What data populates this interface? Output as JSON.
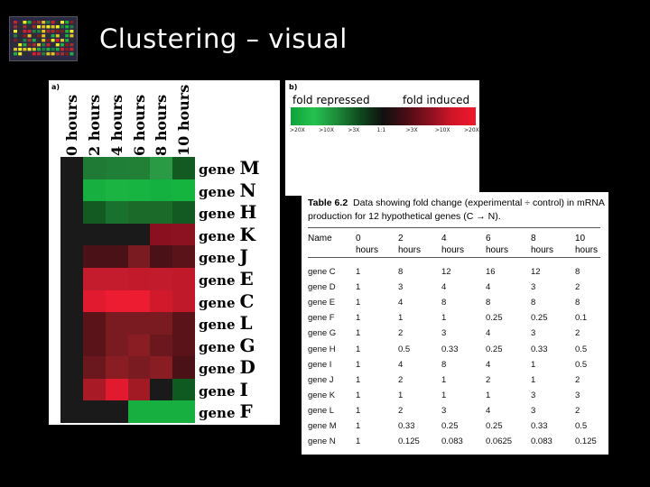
{
  "slide": {
    "title": "Clustering – visual"
  },
  "logo": {
    "icon": "microarray-thumbnail-icon"
  },
  "heatmap": {
    "panel_label": "a)",
    "timepoints": [
      "0 hours",
      "2 hours",
      "4 hours",
      "6 hours",
      "8 hours",
      "10 hours"
    ],
    "gene_word": "gene",
    "genes": [
      "M",
      "N",
      "H",
      "K",
      "J",
      "E",
      "C",
      "L",
      "G",
      "D",
      "I",
      "F"
    ],
    "colors": [
      [
        "#1a1a1a",
        "#1e7a34",
        "#1f7f36",
        "#227f36",
        "#2a9a45",
        "#135a22"
      ],
      [
        "#1a1a1a",
        "#17b040",
        "#1bb443",
        "#18b442",
        "#14b140",
        "#14b43f"
      ],
      [
        "#1a1a1a",
        "#135a22",
        "#18722d",
        "#1c6a2a",
        "#1c6a2a",
        "#135a22"
      ],
      [
        "#1a1a1a",
        "#1a1a1a",
        "#1a1a1a",
        "#1a1a1a",
        "#8a1020",
        "#8c1222"
      ],
      [
        "#1a1a1a",
        "#4a1117",
        "#4a1117",
        "#7a1b22",
        "#4a1117",
        "#5a1419"
      ],
      [
        "#1a1a1a",
        "#c41c2c",
        "#c41c2c",
        "#c21a2a",
        "#c21c2c",
        "#c01a2a"
      ],
      [
        "#1a1a1a",
        "#e11a2f",
        "#ee1c30",
        "#ee1c30",
        "#d01a2c",
        "#c01a2a"
      ],
      [
        "#1a1a1a",
        "#5a1419",
        "#7a1b22",
        "#7a1b22",
        "#7a1b22",
        "#5a1419"
      ],
      [
        "#1a1a1a",
        "#5a1419",
        "#7a1b22",
        "#8a1d24",
        "#6a171d",
        "#5a1419"
      ],
      [
        "#1a1a1a",
        "#6a171d",
        "#8a1d24",
        "#7a1b22",
        "#8a1d24",
        "#4a1117"
      ],
      [
        "#1a1a1a",
        "#a81a26",
        "#e11a2f",
        "#a21a24",
        "#1a1a1a",
        "#0f5a20"
      ],
      [
        "#1a1a1a",
        "#1a1a1a",
        "#1a1a1a",
        "#17b040",
        "#17b040",
        "#17b040"
      ]
    ]
  },
  "legend": {
    "panel_label": "b)",
    "repressed_label": "fold repressed",
    "induced_label": "fold induced",
    "scale_labels": [
      ">20X",
      ">10X",
      ">3X",
      "1:1",
      ">3X",
      ">10X",
      ">20X"
    ],
    "gradient_colors": [
      "#0fa23a",
      "#24c24f",
      "#1e8a3a",
      "#0d4a1c",
      "#101010",
      "#4a0d14",
      "#8a1020",
      "#d01628",
      "#f0182c"
    ]
  },
  "table": {
    "number": "Table 6.2",
    "caption": "Data showing fold change (experimental ÷ control) in mRNA production for 12 hypothetical genes (C → N).",
    "headers": [
      [
        "Name"
      ],
      [
        "0",
        "hours"
      ],
      [
        "2",
        "hours"
      ],
      [
        "4",
        "hours"
      ],
      [
        "6",
        "hours"
      ],
      [
        "8",
        "hours"
      ],
      [
        "10",
        "hours"
      ]
    ],
    "rows": [
      [
        "gene C",
        "1",
        "8",
        "12",
        "16",
        "12",
        "8"
      ],
      [
        "gene D",
        "1",
        "3",
        "4",
        "4",
        "3",
        "2"
      ],
      [
        "gene E",
        "1",
        "4",
        "8",
        "8",
        "8",
        "8"
      ],
      [
        "gene F",
        "1",
        "1",
        "1",
        "0.25",
        "0.25",
        "0.1"
      ],
      [
        "gene G",
        "1",
        "2",
        "3",
        "4",
        "3",
        "2"
      ],
      [
        "gene H",
        "1",
        "0.5",
        "0.33",
        "0.25",
        "0.33",
        "0.5"
      ],
      [
        "gene I",
        "1",
        "4",
        "8",
        "4",
        "1",
        "0.5"
      ],
      [
        "gene J",
        "1",
        "2",
        "1",
        "2",
        "1",
        "2"
      ],
      [
        "gene K",
        "1",
        "1",
        "1",
        "1",
        "3",
        "3"
      ],
      [
        "gene L",
        "1",
        "2",
        "3",
        "4",
        "3",
        "2"
      ],
      [
        "gene M",
        "1",
        "0.33",
        "0.25",
        "0.25",
        "0.33",
        "0.5"
      ],
      [
        "gene N",
        "1",
        "0.125",
        "0.083",
        "0.0625",
        "0.083",
        "0.125"
      ]
    ]
  }
}
